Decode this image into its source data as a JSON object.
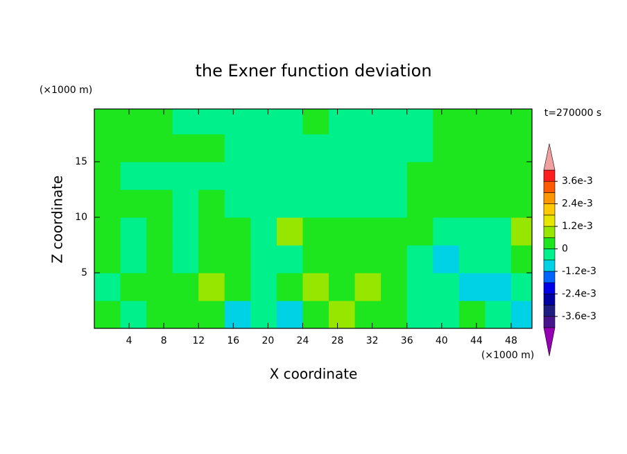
{
  "chart_data": {
    "type": "contour",
    "title": "the Exner function deviation",
    "xlabel": "X coordinate",
    "ylabel": "Z coordinate",
    "xunit": "(×1000 m)",
    "yunit": "(×1000 m)",
    "time_label": "t=270000 s",
    "xlim": [
      0,
      50.4
    ],
    "ylim": [
      0,
      19.75
    ],
    "xticks": [
      4,
      8,
      12,
      16,
      20,
      24,
      28,
      32,
      36,
      40,
      44,
      48
    ],
    "yticks": [
      5,
      10,
      15
    ],
    "x": [
      1.5,
      4.5,
      7.5,
      10.5,
      13.5,
      16.5,
      19.5,
      22.5,
      25.5,
      28.5,
      31.5,
      34.5,
      37.5,
      40.5,
      43.5,
      46.5,
      49.5
    ],
    "y": [
      1.25,
      3.75,
      6.25,
      8.75,
      11.25,
      13.75,
      16.25,
      18.75
    ],
    "values": [
      [
        0.0003,
        -0.0003,
        0.0003,
        0.0003,
        0.0003,
        -0.0009,
        -0.0003,
        -0.0009,
        0.0003,
        0.0009,
        0.0003,
        0.0003,
        -0.0003,
        -0.0003,
        0.0003,
        -0.0003,
        -0.0009
      ],
      [
        -0.0003,
        0.0003,
        0.0003,
        0.0003,
        0.0009,
        0.0003,
        -0.0003,
        0.0003,
        0.0009,
        0.0003,
        0.0009,
        0.0003,
        -0.0003,
        -0.0003,
        -0.0009,
        -0.0009,
        -0.0003
      ],
      [
        0.0003,
        -0.0003,
        0.0003,
        -0.0003,
        0.0003,
        0.0003,
        -0.0003,
        -0.0003,
        0.0003,
        0.0003,
        0.0003,
        0.0003,
        -0.0003,
        -0.0009,
        -0.0003,
        -0.0003,
        0.0003
      ],
      [
        0.0003,
        -0.0003,
        0.0003,
        -0.0003,
        0.0003,
        0.0003,
        -0.0003,
        0.0009,
        0.0003,
        0.0003,
        0.0003,
        0.0003,
        0.0003,
        -0.0003,
        -0.0003,
        -0.0003,
        0.0009
      ],
      [
        0.0003,
        0.0003,
        0.0003,
        -0.0003,
        0.0003,
        -0.0003,
        -0.0003,
        -0.0003,
        -0.0003,
        -0.0003,
        -0.0003,
        -0.0003,
        0.0003,
        0.0003,
        0.0003,
        0.0003,
        0.0003
      ],
      [
        0.0003,
        -0.0003,
        -0.0003,
        -0.0003,
        -0.0003,
        -0.0003,
        -0.0003,
        -0.0003,
        -0.0003,
        -0.0003,
        -0.0003,
        -0.0003,
        0.0003,
        0.0003,
        0.0003,
        0.0003,
        0.0003
      ],
      [
        0.0003,
        0.0003,
        0.0003,
        0.0003,
        0.0003,
        -0.0003,
        -0.0003,
        -0.0003,
        -0.0003,
        -0.0003,
        -0.0003,
        -0.0003,
        -0.0003,
        0.0003,
        0.0003,
        0.0003,
        0.0003
      ],
      [
        0.0003,
        0.0003,
        0.0003,
        -0.0003,
        -0.0003,
        -0.0003,
        -0.0003,
        -0.0003,
        0.0003,
        -0.0003,
        -0.0003,
        -0.0003,
        -0.0003,
        0.0003,
        0.0003,
        0.0003,
        0.0003
      ]
    ],
    "levels": [
      -0.0042,
      -0.0036,
      -0.003,
      -0.0024,
      -0.0018,
      -0.0012,
      -0.0006,
      0,
      0.0006,
      0.0012,
      0.0018,
      0.0024,
      0.003,
      0.0036,
      0.0042
    ],
    "colors": [
      "#46148c",
      "#1e1e82",
      "#0000a0",
      "#0000e6",
      "#0064ff",
      "#00d2e6",
      "#00f08c",
      "#1ee61e",
      "#96e600",
      "#e6e600",
      "#ffc800",
      "#ff9600",
      "#ff5a00",
      "#ff1e1e"
    ],
    "over_color": "#f0a0a0",
    "under_color": "#9600b4",
    "colorbar_ticks": [
      {
        "value": 0.0036,
        "label": "3.6e-3"
      },
      {
        "value": 0.0024,
        "label": "2.4e-3"
      },
      {
        "value": 0.0012,
        "label": "1.2e-3"
      },
      0,
      {
        "value": -0.0012,
        "label": "-1.2e-3"
      },
      {
        "value": -0.0024,
        "label": "-2.4e-3"
      },
      {
        "value": -0.0036,
        "label": "-3.6e-3"
      }
    ]
  }
}
